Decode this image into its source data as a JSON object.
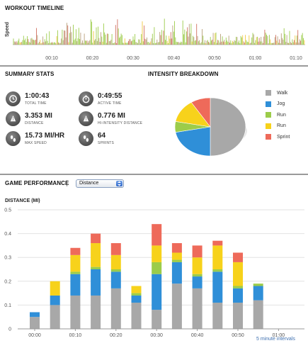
{
  "timeline": {
    "title": "WORKOUT TIMELINE",
    "ylabel": "Speed",
    "ticks": [
      "00:10",
      "00:20",
      "00:30",
      "00:40",
      "00:50",
      "01:00",
      "01:10"
    ]
  },
  "summary": {
    "title": "SUMMARY STATS",
    "stats": [
      {
        "value": "1:00:43",
        "label": "TOTAL TIME",
        "icon": "clock-icon"
      },
      {
        "value": "0:49:55",
        "label": "ACTIVE TIME",
        "icon": "stopwatch-icon"
      },
      {
        "value": "3.353 MI",
        "label": "DISTANCE",
        "icon": "distance-icon"
      },
      {
        "value": "0.776 MI",
        "label": "HI-INTENSITY DISTANCE",
        "icon": "distance-icon"
      },
      {
        "value": "15.73 MI/HR",
        "label": "MAX SPEED",
        "icon": "footprints-icon"
      },
      {
        "value": "64",
        "label": "SPRINTS",
        "icon": "footprints-icon"
      }
    ]
  },
  "intensity": {
    "title": "INTENSITY BREAKDOWN",
    "legend": [
      {
        "label": "Walk",
        "color": "#a8a8a8"
      },
      {
        "label": "Jog",
        "color": "#2f8fd8"
      },
      {
        "label": "Run",
        "color": "#9ccc4a"
      },
      {
        "label": "Run",
        "color": "#f7d21b"
      },
      {
        "label": "Sprint",
        "color": "#ee6a5a"
      }
    ],
    "shares": [
      0.5,
      0.22,
      0.06,
      0.13,
      0.09
    ]
  },
  "game": {
    "title": "GAME PERFORMANCE",
    "select_value": "Distance",
    "intervals_label": "5 minute intervals"
  },
  "chart_data": {
    "type": "bar",
    "stacked": true,
    "ylabel": "DISTANCE (MI)",
    "ylim": [
      0,
      0.5
    ],
    "yticks": [
      "0",
      "0.1",
      "0.2",
      "0.3",
      "0.4",
      "0.5"
    ],
    "xticks": [
      "00:00",
      "00:10",
      "00:20",
      "00:30",
      "00:40",
      "00:50",
      "01:00"
    ],
    "categories": [
      "00:00",
      "00:05",
      "00:10",
      "00:15",
      "00:20",
      "00:25",
      "00:30",
      "00:35",
      "00:40",
      "00:45",
      "00:50",
      "00:55",
      "01:00"
    ],
    "series": [
      {
        "name": "Walk",
        "color": "#a8a8a8",
        "values": [
          0.05,
          0.1,
          0.14,
          0.14,
          0.17,
          0.11,
          0.08,
          0.19,
          0.17,
          0.11,
          0.11,
          0.12,
          0
        ]
      },
      {
        "name": "Jog",
        "color": "#2f8fd8",
        "values": [
          0.02,
          0.04,
          0.09,
          0.11,
          0.07,
          0.03,
          0.15,
          0.09,
          0.05,
          0.13,
          0.06,
          0.06,
          0
        ]
      },
      {
        "name": "Run",
        "color": "#9ccc4a",
        "values": [
          0,
          0,
          0.01,
          0.01,
          0.01,
          0.01,
          0.05,
          0.01,
          0.01,
          0.01,
          0.01,
          0.01,
          0
        ]
      },
      {
        "name": "Run",
        "color": "#f7d21b",
        "values": [
          0,
          0.06,
          0.07,
          0.1,
          0.06,
          0.03,
          0.07,
          0.03,
          0.07,
          0.1,
          0.1,
          0,
          0
        ]
      },
      {
        "name": "Sprint",
        "color": "#ee6a5a",
        "values": [
          0,
          0,
          0.03,
          0.04,
          0.05,
          0,
          0.09,
          0.04,
          0.05,
          0.02,
          0.04,
          0,
          0
        ]
      }
    ]
  }
}
